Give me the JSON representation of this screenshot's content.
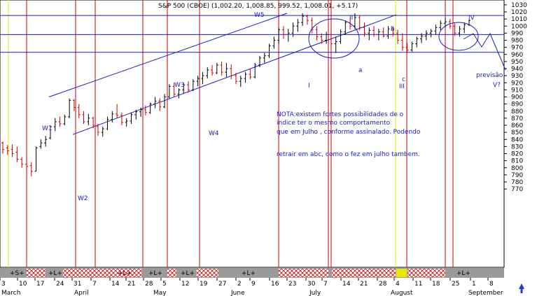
{
  "chart_data": {
    "type": "bar",
    "title": "S&P 500 (CBOE) (1,002.20, 1,008.85, 999.52, 1,008.01, +5.17)",
    "y_range": [
      760,
      1040
    ],
    "yticks": [
      770,
      780,
      790,
      800,
      810,
      820,
      830,
      840,
      850,
      860,
      870,
      880,
      890,
      900,
      910,
      920,
      930,
      940,
      950,
      960,
      970,
      980,
      990,
      1000,
      1010,
      1020,
      1030
    ],
    "x_tick_labels": [
      "3",
      "10",
      "17",
      "24",
      "31",
      "7",
      "14",
      "21",
      "28",
      "5",
      "12",
      "19",
      "27",
      "2",
      "9",
      "16",
      "23",
      "30",
      "7",
      "14",
      "21",
      "28",
      "4",
      "11",
      "18",
      "25",
      "1",
      "8"
    ],
    "month_labels": [
      "March",
      "April",
      "May",
      "June",
      "July",
      "August",
      "September"
    ],
    "wave_labels": [
      "W1",
      "W2",
      "W3",
      "W4",
      "W5",
      "I",
      "II",
      "III",
      "IV",
      "a",
      "b",
      "c"
    ],
    "note_lines": [
      "NOTA:existem fortes possibilidades de o",
      "indice ter o mesmo comportamento",
      "que em Julho , conforme assinalado. Podendo",
      "retrair em abc, como o fez em julho tambem."
    ],
    "previsao_label": "previsão",
    "v_label": "V?",
    "horizontal_levels": [
      1015,
      988,
      963
    ],
    "signal_labels": [
      "+S+",
      "+L+",
      "+L+",
      "+L+",
      "+L+",
      "+L+",
      "+L+"
    ],
    "ohlc": [
      {
        "o": 835,
        "h": 837,
        "l": 820,
        "c": 826
      },
      {
        "o": 828,
        "h": 832,
        "l": 818,
        "c": 824
      },
      {
        "o": 826,
        "h": 833,
        "l": 815,
        "c": 820
      },
      {
        "o": 822,
        "h": 830,
        "l": 808,
        "c": 812
      },
      {
        "o": 812,
        "h": 815,
        "l": 800,
        "c": 805
      },
      {
        "o": 805,
        "h": 810,
        "l": 795,
        "c": 802
      },
      {
        "o": 803,
        "h": 808,
        "l": 788,
        "c": 795
      },
      {
        "o": 795,
        "h": 830,
        "l": 795,
        "c": 828
      },
      {
        "o": 830,
        "h": 840,
        "l": 827,
        "c": 835
      },
      {
        "o": 835,
        "h": 845,
        "l": 830,
        "c": 840
      },
      {
        "o": 842,
        "h": 860,
        "l": 840,
        "c": 858
      },
      {
        "o": 858,
        "h": 870,
        "l": 852,
        "c": 865
      },
      {
        "o": 865,
        "h": 872,
        "l": 858,
        "c": 862
      },
      {
        "o": 862,
        "h": 875,
        "l": 860,
        "c": 872
      },
      {
        "o": 872,
        "h": 898,
        "l": 870,
        "c": 895
      },
      {
        "o": 895,
        "h": 897,
        "l": 880,
        "c": 885
      },
      {
        "o": 885,
        "h": 890,
        "l": 870,
        "c": 875
      },
      {
        "o": 875,
        "h": 880,
        "l": 862,
        "c": 865
      },
      {
        "o": 865,
        "h": 876,
        "l": 860,
        "c": 870
      },
      {
        "o": 870,
        "h": 872,
        "l": 856,
        "c": 860
      },
      {
        "o": 858,
        "h": 862,
        "l": 845,
        "c": 850
      },
      {
        "o": 850,
        "h": 858,
        "l": 844,
        "c": 855
      },
      {
        "o": 855,
        "h": 872,
        "l": 853,
        "c": 868
      },
      {
        "o": 868,
        "h": 880,
        "l": 864,
        "c": 876
      },
      {
        "o": 876,
        "h": 890,
        "l": 870,
        "c": 874
      },
      {
        "o": 874,
        "h": 878,
        "l": 860,
        "c": 864
      },
      {
        "o": 864,
        "h": 870,
        "l": 858,
        "c": 866
      },
      {
        "o": 866,
        "h": 878,
        "l": 862,
        "c": 875
      },
      {
        "o": 875,
        "h": 882,
        "l": 868,
        "c": 879
      },
      {
        "o": 879,
        "h": 885,
        "l": 872,
        "c": 882
      },
      {
        "o": 882,
        "h": 888,
        "l": 874,
        "c": 878
      },
      {
        "o": 878,
        "h": 892,
        "l": 876,
        "c": 890
      },
      {
        "o": 890,
        "h": 900,
        "l": 884,
        "c": 894
      },
      {
        "o": 894,
        "h": 898,
        "l": 880,
        "c": 886
      },
      {
        "o": 886,
        "h": 904,
        "l": 884,
        "c": 900
      },
      {
        "o": 900,
        "h": 918,
        "l": 898,
        "c": 915
      },
      {
        "o": 915,
        "h": 920,
        "l": 900,
        "c": 904
      },
      {
        "o": 904,
        "h": 912,
        "l": 898,
        "c": 910
      },
      {
        "o": 910,
        "h": 920,
        "l": 905,
        "c": 917
      },
      {
        "o": 917,
        "h": 922,
        "l": 906,
        "c": 910
      },
      {
        "o": 910,
        "h": 925,
        "l": 908,
        "c": 922
      },
      {
        "o": 922,
        "h": 930,
        "l": 915,
        "c": 926
      },
      {
        "o": 926,
        "h": 935,
        "l": 918,
        "c": 930
      },
      {
        "o": 930,
        "h": 942,
        "l": 926,
        "c": 938
      },
      {
        "o": 938,
        "h": 945,
        "l": 930,
        "c": 934
      },
      {
        "o": 934,
        "h": 948,
        "l": 932,
        "c": 945
      },
      {
        "o": 945,
        "h": 950,
        "l": 930,
        "c": 935
      },
      {
        "o": 935,
        "h": 948,
        "l": 928,
        "c": 940
      },
      {
        "o": 940,
        "h": 946,
        "l": 925,
        "c": 930
      },
      {
        "o": 930,
        "h": 934,
        "l": 918,
        "c": 922
      },
      {
        "o": 922,
        "h": 930,
        "l": 914,
        "c": 926
      },
      {
        "o": 926,
        "h": 935,
        "l": 920,
        "c": 932
      },
      {
        "o": 932,
        "h": 940,
        "l": 925,
        "c": 928
      },
      {
        "o": 928,
        "h": 948,
        "l": 926,
        "c": 945
      },
      {
        "o": 945,
        "h": 958,
        "l": 942,
        "c": 955
      },
      {
        "o": 955,
        "h": 962,
        "l": 948,
        "c": 958
      },
      {
        "o": 958,
        "h": 975,
        "l": 955,
        "c": 972
      },
      {
        "o": 972,
        "h": 985,
        "l": 968,
        "c": 980
      },
      {
        "o": 980,
        "h": 998,
        "l": 975,
        "c": 995
      },
      {
        "o": 995,
        "h": 1000,
        "l": 982,
        "c": 988
      },
      {
        "o": 988,
        "h": 996,
        "l": 978,
        "c": 990
      },
      {
        "o": 990,
        "h": 1005,
        "l": 985,
        "c": 1000
      },
      {
        "o": 1000,
        "h": 1010,
        "l": 992,
        "c": 1005
      },
      {
        "o": 1005,
        "h": 1018,
        "l": 1000,
        "c": 1014
      },
      {
        "o": 1014,
        "h": 1016,
        "l": 1002,
        "c": 1008
      },
      {
        "o": 1008,
        "h": 1012,
        "l": 990,
        "c": 995
      },
      {
        "o": 995,
        "h": 1000,
        "l": 980,
        "c": 985
      },
      {
        "o": 985,
        "h": 990,
        "l": 975,
        "c": 980
      },
      {
        "o": 980,
        "h": 992,
        "l": 975,
        "c": 988
      },
      {
        "o": 988,
        "h": 994,
        "l": 970,
        "c": 975
      },
      {
        "o": 975,
        "h": 985,
        "l": 962,
        "c": 978
      },
      {
        "o": 978,
        "h": 995,
        "l": 975,
        "c": 992
      },
      {
        "o": 992,
        "h": 1008,
        "l": 988,
        "c": 1005
      },
      {
        "o": 1005,
        "h": 1012,
        "l": 995,
        "c": 1000
      },
      {
        "o": 1000,
        "h": 1018,
        "l": 996,
        "c": 1012
      },
      {
        "o": 1012,
        "h": 1015,
        "l": 994,
        "c": 998
      },
      {
        "o": 998,
        "h": 1005,
        "l": 985,
        "c": 990
      },
      {
        "o": 990,
        "h": 998,
        "l": 980,
        "c": 994
      },
      {
        "o": 994,
        "h": 1000,
        "l": 985,
        "c": 988
      },
      {
        "o": 988,
        "h": 996,
        "l": 980,
        "c": 992
      },
      {
        "o": 992,
        "h": 998,
        "l": 984,
        "c": 986
      },
      {
        "o": 986,
        "h": 1000,
        "l": 982,
        "c": 996
      },
      {
        "o": 996,
        "h": 1000,
        "l": 985,
        "c": 990
      },
      {
        "o": 990,
        "h": 995,
        "l": 975,
        "c": 980
      },
      {
        "o": 980,
        "h": 990,
        "l": 965,
        "c": 970
      },
      {
        "o": 970,
        "h": 976,
        "l": 962,
        "c": 966
      },
      {
        "o": 966,
        "h": 978,
        "l": 964,
        "c": 975
      },
      {
        "o": 975,
        "h": 985,
        "l": 970,
        "c": 982
      },
      {
        "o": 982,
        "h": 990,
        "l": 976,
        "c": 986
      },
      {
        "o": 986,
        "h": 994,
        "l": 980,
        "c": 990
      },
      {
        "o": 990,
        "h": 996,
        "l": 984,
        "c": 993
      },
      {
        "o": 993,
        "h": 1002,
        "l": 988,
        "c": 998
      },
      {
        "o": 998,
        "h": 1008,
        "l": 994,
        "c": 1004
      },
      {
        "o": 1004,
        "h": 1012,
        "l": 998,
        "c": 1006
      },
      {
        "o": 1006,
        "h": 1010,
        "l": 996,
        "c": 1000
      },
      {
        "o": 1000,
        "h": 1004,
        "l": 986,
        "c": 990
      },
      {
        "o": 990,
        "h": 1000,
        "l": 985,
        "c": 996
      },
      {
        "o": 996,
        "h": 1005,
        "l": 990,
        "c": 1002
      },
      {
        "o": 1002,
        "h": 1009,
        "l": 1000,
        "c": 1008
      }
    ]
  },
  "colors": {
    "up": "#000000",
    "down": "#cc0000",
    "grid_line": "#1a1ad0",
    "vertical_red": "#cc0000",
    "vertical_yellow": "#e8e800",
    "signal_bar_bg": "#9a9a9a",
    "hatch": "#cc0000"
  }
}
